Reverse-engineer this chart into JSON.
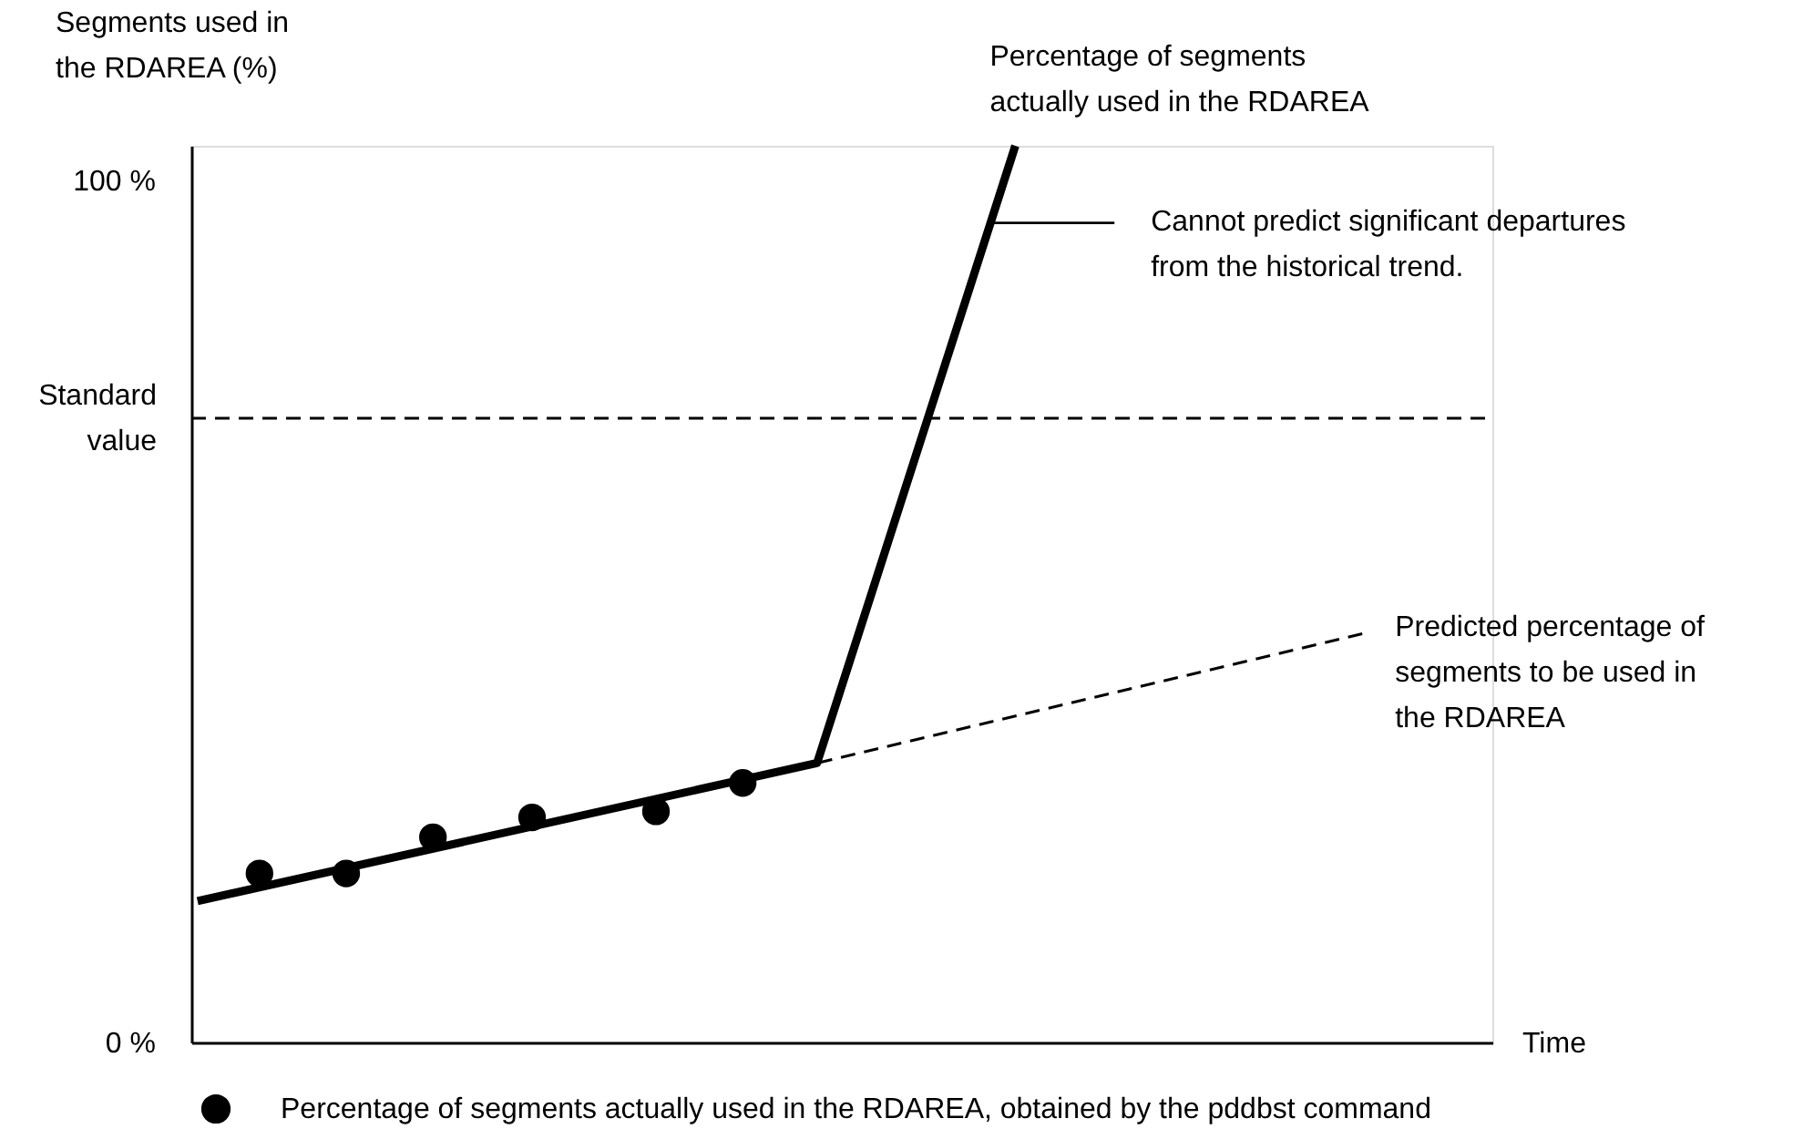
{
  "chart_data": {
    "type": "line",
    "xlabel": "Time",
    "ylabel": "Segments used in the RDAREA (%)",
    "categories": [
      null,
      null,
      null,
      null,
      null,
      null,
      null,
      null,
      null,
      null,
      null,
      null,
      null,
      null,
      null,
      null,
      null,
      null,
      null,
      null,
      null,
      null,
      null,
      null,
      null,
      null,
      null,
      null,
      null,
      null,
      null,
      null,
      null,
      null,
      null,
      null,
      null,
      null,
      null,
      null,
      null,
      null,
      null,
      null,
      null,
      null,
      null,
      null,
      null,
      null,
      null,
      null,
      null,
      null,
      null,
      null,
      null,
      null,
      null,
      null,
      null,
      null,
      null,
      null,
      null,
      null,
      null,
      null,
      null,
      null,
      null,
      null,
      null,
      null,
      null,
      null,
      null,
      null,
      null,
      null,
      null,
      null,
      null,
      null,
      null,
      null,
      null,
      null,
      null,
      null,
      null,
      null,
      null,
      null,
      null,
      null,
      null,
      null,
      null,
      null,
      null,
      null,
      null,
      null,
      null
    ],
    "series": [
      {
        "name": "Percentage of segments actually used in the RDAREA, obtained by the pddbst command",
        "type": "scatter",
        "marker": "circle",
        "color": "#000000",
        "values": [
          null,
          null,
          null,
          null,
          null,
          19.6,
          null,
          null,
          null,
          null,
          null,
          null,
          19.6,
          null,
          null,
          null,
          null,
          null,
          null,
          23.8,
          null,
          null,
          null,
          null,
          null,
          null,
          null,
          26.1,
          null,
          null,
          null,
          null,
          null,
          null,
          null,
          null,
          null,
          26.8,
          null,
          null,
          null,
          null,
          null,
          null,
          30.1,
          null,
          null,
          null,
          null,
          null,
          null,
          null,
          null,
          null,
          null,
          null,
          null,
          null,
          null,
          null,
          null,
          null,
          null,
          null,
          null,
          null,
          null,
          null,
          null,
          null,
          null,
          null,
          null,
          null,
          null,
          null,
          null,
          null,
          null,
          null,
          null,
          null,
          null,
          null,
          null,
          null,
          null,
          null,
          null,
          null,
          null,
          null,
          null,
          null,
          null,
          null,
          null,
          null,
          null,
          null,
          null,
          null,
          null,
          null,
          null
        ]
      },
      {
        "name": "Percentage of segments actually used in the RDAREA",
        "line_style": "solid",
        "color": "#000000",
        "values": [
          16.4,
          null,
          null,
          null,
          null,
          null,
          null,
          null,
          null,
          null,
          null,
          null,
          null,
          null,
          null,
          null,
          null,
          null,
          null,
          null,
          null,
          null,
          null,
          null,
          null,
          null,
          null,
          null,
          null,
          null,
          null,
          null,
          null,
          null,
          null,
          null,
          null,
          null,
          null,
          null,
          null,
          null,
          null,
          null,
          null,
          null,
          null,
          null,
          null,
          null,
          32.4,
          null,
          null,
          null,
          null,
          null,
          null,
          null,
          null,
          null,
          null,
          null,
          null,
          null,
          null,
          null,
          104,
          null,
          null,
          null,
          null,
          null,
          null,
          null,
          null,
          null,
          null,
          null,
          null,
          null,
          null,
          null,
          null,
          null,
          null,
          null,
          null,
          null,
          null,
          null,
          null,
          null,
          null,
          null,
          null,
          null,
          null,
          null,
          null,
          null,
          null,
          null,
          null,
          null,
          null
        ]
      },
      {
        "name": "Predicted percentage of segments to be used in the RDAREA",
        "line_style": "dashed",
        "color": "#000000",
        "values": [
          null,
          null,
          null,
          null,
          null,
          null,
          null,
          null,
          null,
          null,
          null,
          null,
          null,
          null,
          null,
          null,
          null,
          null,
          null,
          null,
          null,
          null,
          null,
          null,
          null,
          null,
          null,
          null,
          null,
          null,
          null,
          null,
          null,
          null,
          null,
          null,
          null,
          null,
          null,
          null,
          null,
          null,
          null,
          null,
          null,
          null,
          null,
          null,
          null,
          null,
          32.4,
          null,
          null,
          null,
          null,
          null,
          null,
          null,
          null,
          null,
          null,
          null,
          null,
          null,
          null,
          null,
          null,
          null,
          null,
          null,
          null,
          null,
          null,
          null,
          null,
          null,
          null,
          null,
          null,
          null,
          null,
          null,
          null,
          null,
          null,
          null,
          null,
          null,
          null,
          null,
          null,
          null,
          null,
          null,
          47.4,
          null,
          null,
          null,
          null,
          null,
          null,
          null,
          null,
          null,
          null
        ]
      }
    ],
    "ylim": [
      0,
      104
    ],
    "yticks": [
      {
        "value": 0,
        "label": "0 %"
      },
      {
        "value": 100,
        "label": "100 %"
      }
    ],
    "tick_labels": "y",
    "ref_lines": [
      {
        "axis": "y",
        "value": 72.4,
        "label": "Standard value",
        "color": "#000000",
        "line_style": "dashed"
      }
    ],
    "annotations": [
      "Cannot predict significant departures from the historical trend."
    ],
    "legend": "bottom"
  }
}
